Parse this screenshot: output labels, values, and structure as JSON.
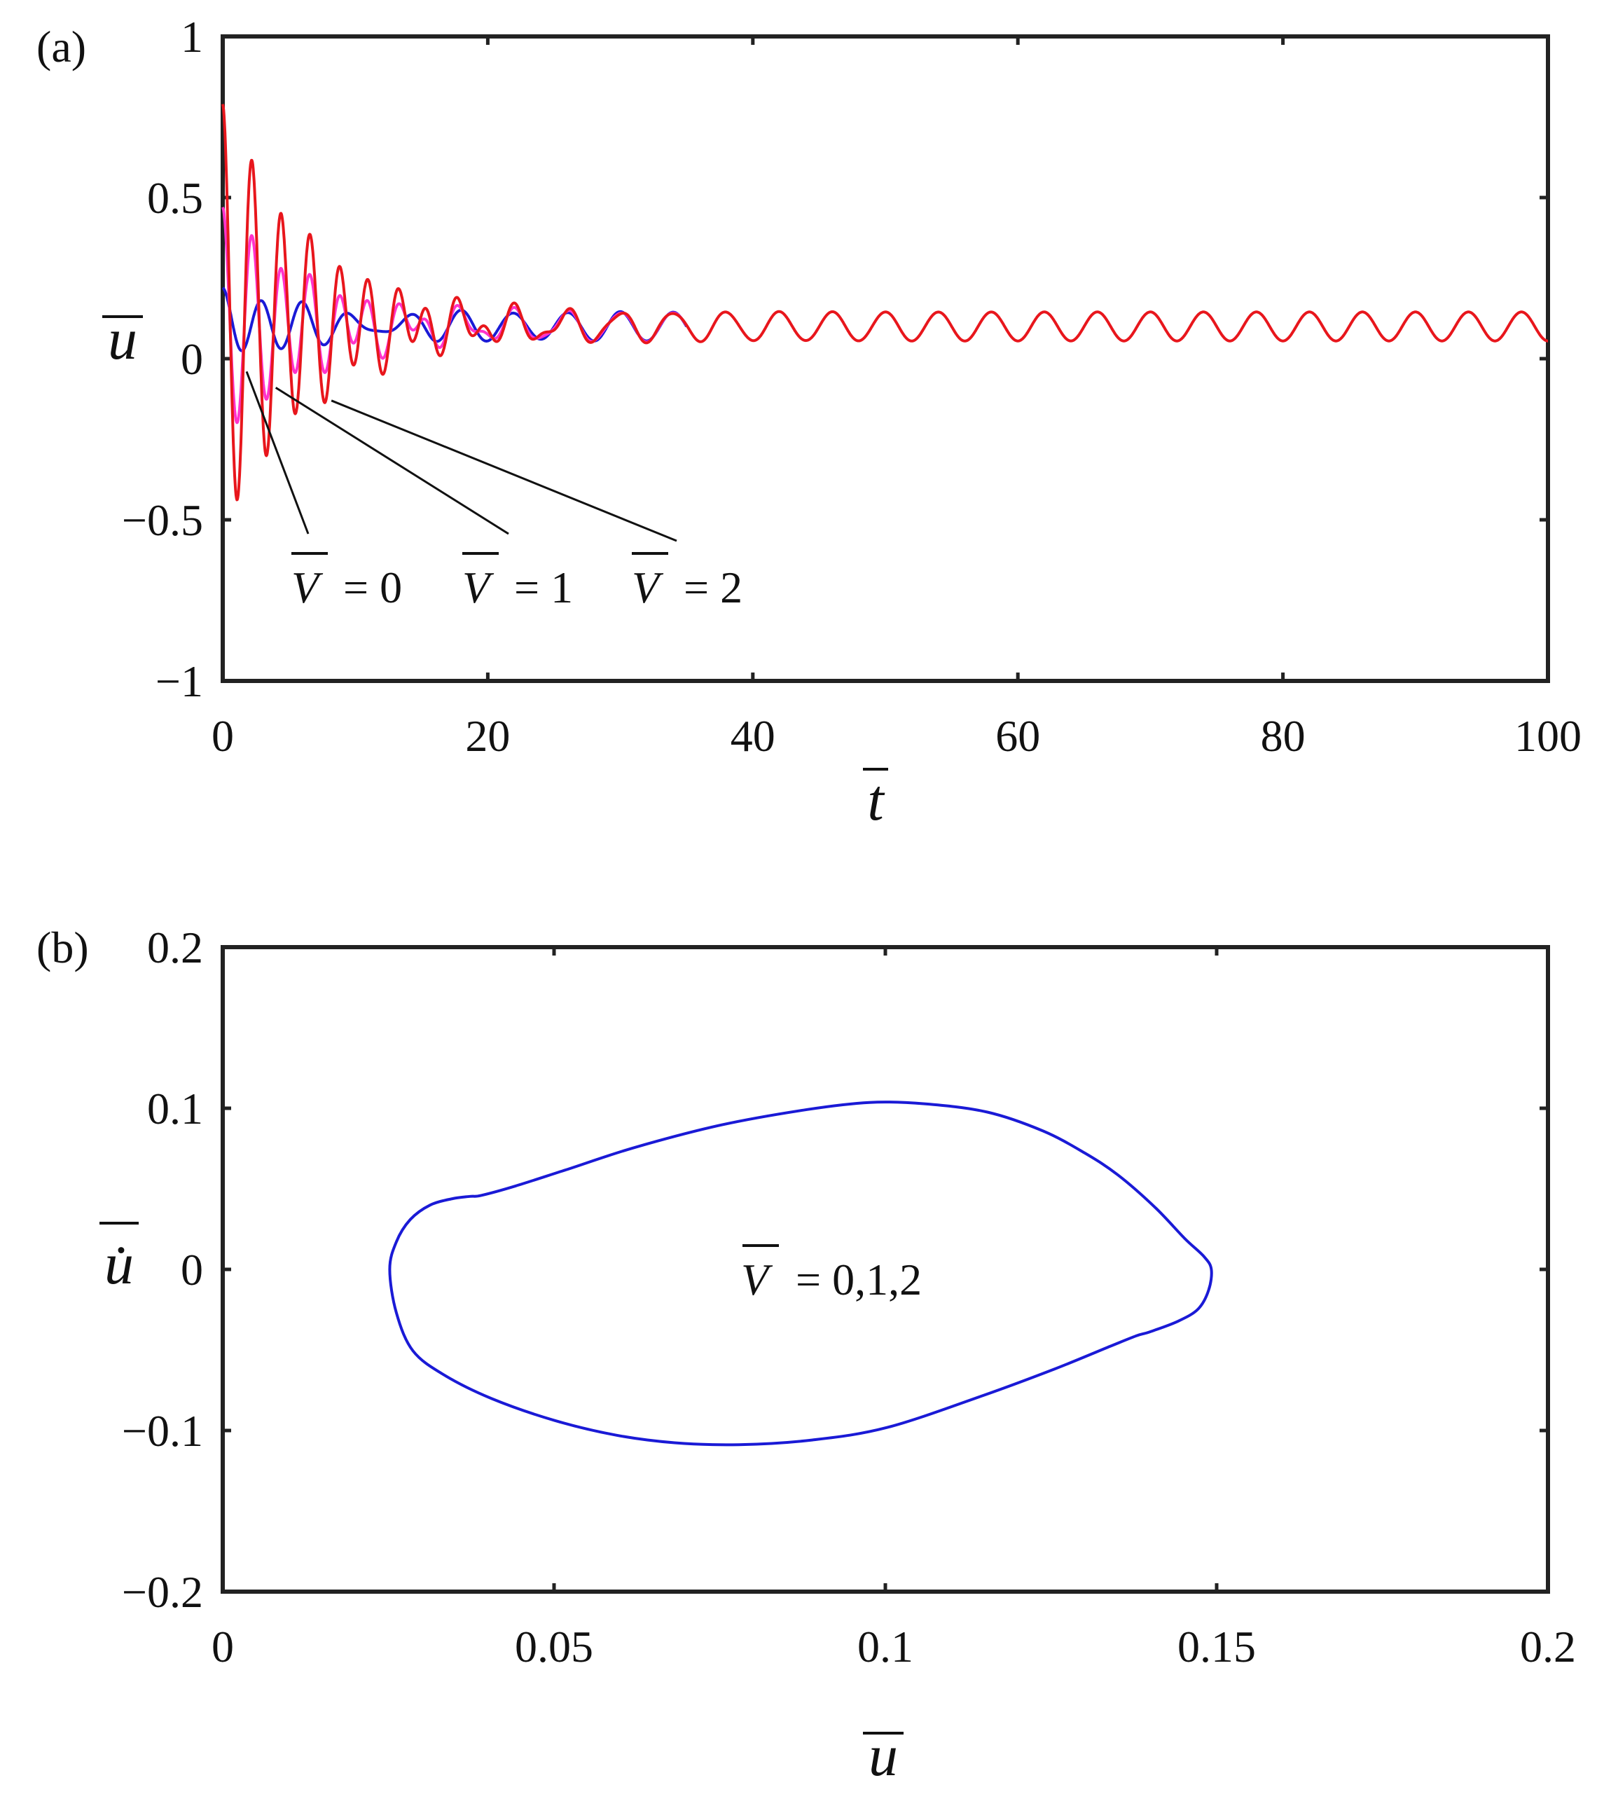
{
  "chart_data": [
    {
      "panel": "(a)",
      "type": "line",
      "xlabel": "t",
      "ylabel": "u",
      "xlim": [
        0,
        100
      ],
      "ylim": [
        -1,
        1
      ],
      "xticks": [
        0,
        20,
        40,
        60,
        80,
        100
      ],
      "xtick_labels": [
        "0",
        "20",
        "40",
        "60",
        "80",
        "100"
      ],
      "yticks": [
        -1,
        -0.5,
        0,
        0.5,
        1
      ],
      "ytick_labels": [
        "−1",
        "−0.5",
        "0",
        "0.5",
        "1"
      ],
      "grid": false,
      "steady_state": {
        "mean": 0.1,
        "amplitude": 0.045,
        "period": 4.0
      },
      "series": [
        {
          "name": "V = 0",
          "color": "#1a1ad6",
          "initial_amplitude": 0.11,
          "initial_mean": 0.11,
          "decay_time": 7.0,
          "period": 3.0,
          "start": 0.0,
          "end": 35
        },
        {
          "name": "V = 1",
          "color": "#ff33cc",
          "initial_amplitude": 0.36,
          "initial_mean": 0.11,
          "decay_time": 7.0,
          "period": 2.2,
          "start": 0.0,
          "end": 35
        },
        {
          "name": "V = 2",
          "color": "#e8161c",
          "initial_amplitude": 0.66,
          "initial_mean": 0.13,
          "decay_time": 7.0,
          "period": 2.2,
          "start": 0.0,
          "end": 100
        }
      ],
      "annotations": [
        {
          "var": "V",
          "value": "= 0",
          "points_to": [
            1.8,
            -0.04
          ]
        },
        {
          "var": "V",
          "value": "= 1",
          "points_to": [
            4.0,
            -0.09
          ]
        },
        {
          "var": "V",
          "value": "= 2",
          "points_to": [
            8.2,
            -0.13
          ]
        }
      ]
    },
    {
      "panel": "(b)",
      "type": "line",
      "xlabel": "u",
      "ylabel": "u̇",
      "xlim": [
        0,
        0.2
      ],
      "ylim": [
        -0.2,
        0.2
      ],
      "xticks": [
        0,
        0.05,
        0.1,
        0.15,
        0.2
      ],
      "xtick_labels": [
        "0",
        "0.05",
        "0.1",
        "0.15",
        "0.2"
      ],
      "yticks": [
        -0.2,
        -0.1,
        0,
        0.1,
        0.2
      ],
      "ytick_labels": [
        "−0.2",
        "−0.1",
        "0",
        "0.1",
        "0.2"
      ],
      "grid": false,
      "series": [
        {
          "name": "V = 0,1,2",
          "color": "#1a1ad6",
          "closed": true,
          "x": [
            0.0252,
            0.0262,
            0.0283,
            0.0313,
            0.0347,
            0.0373,
            0.039,
            0.0442,
            0.0518,
            0.0622,
            0.0753,
            0.0882,
            0.0976,
            0.1059,
            0.1154,
            0.1238,
            0.1301,
            0.1351,
            0.1407,
            0.1452,
            0.1481,
            0.1492,
            0.1488,
            0.1472,
            0.1441,
            0.1399,
            0.1379,
            0.1339,
            0.1255,
            0.1148,
            0.1003,
            0.0889,
            0.0779,
            0.0682,
            0.0594,
            0.0501,
            0.0406,
            0.0334,
            0.0287,
            0.0262,
            0.0252
          ],
          "y": [
            0.0,
            0.0171,
            0.0309,
            0.0399,
            0.0439,
            0.0453,
            0.0459,
            0.0518,
            0.0618,
            0.0757,
            0.0897,
            0.0992,
            0.1036,
            0.1028,
            0.0976,
            0.0859,
            0.0722,
            0.0586,
            0.0385,
            0.0191,
            0.0079,
            0.0,
            -0.0128,
            -0.0246,
            -0.0323,
            -0.0388,
            -0.0412,
            -0.0478,
            -0.0619,
            -0.0782,
            -0.0981,
            -0.1059,
            -0.1088,
            -0.1076,
            -0.1029,
            -0.0938,
            -0.0802,
            -0.0655,
            -0.0505,
            -0.0269,
            0.0
          ]
        }
      ],
      "annotations": [
        {
          "var": "V",
          "value": "= 0,1,2"
        }
      ]
    }
  ]
}
